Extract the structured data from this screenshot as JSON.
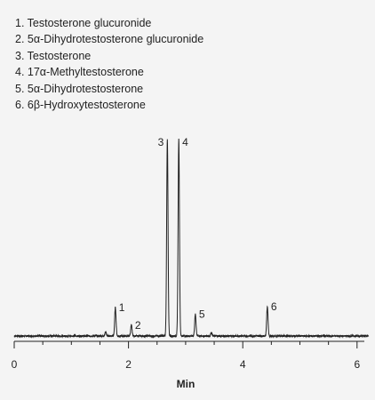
{
  "chart_data": {
    "type": "line",
    "title": "",
    "xlabel": "Min",
    "ylabel": "",
    "xlim": [
      0,
      6.2
    ],
    "ylim": [
      0,
      100
    ],
    "x_ticks": [
      0,
      2,
      4,
      6
    ],
    "grid": false,
    "legend_position": "top-left",
    "legend": [
      "1. Testosterone glucuronide",
      "2. 5α-Dihydrotestosterone glucuronide",
      "3. Testosterone",
      "4. 17α-Methyltestosterone",
      "5. 5α-Dihydrotestosterone",
      "6. 6β-Hydroxytestosterone"
    ],
    "peaks": [
      {
        "label": "1",
        "rt": 1.77,
        "height": 14.5
      },
      {
        "label": "2",
        "rt": 2.05,
        "height": 5.5
      },
      {
        "label": "3",
        "rt": 2.68,
        "height": 100
      },
      {
        "label": "4",
        "rt": 2.88,
        "height": 100
      },
      {
        "label": "5",
        "rt": 3.17,
        "height": 11
      },
      {
        "label": "6",
        "rt": 4.43,
        "height": 15
      }
    ],
    "minor_peaks": [
      {
        "rt": 1.6,
        "height": 2.2
      },
      {
        "rt": 3.45,
        "height": 1.8
      }
    ]
  }
}
